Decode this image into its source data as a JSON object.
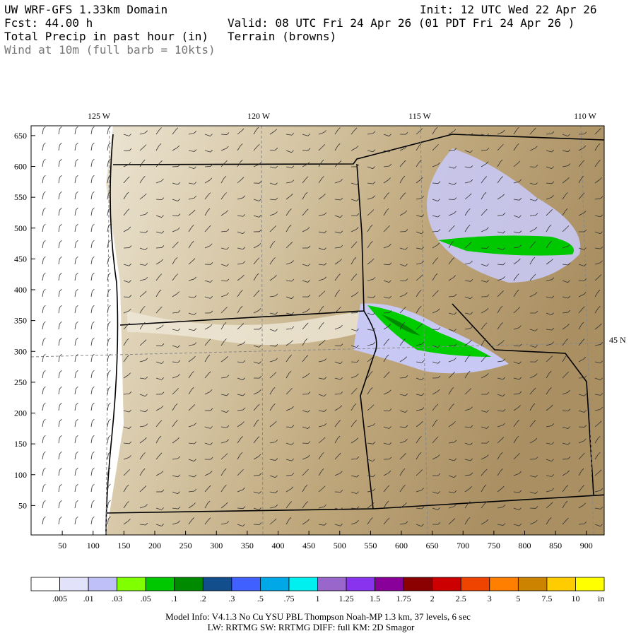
{
  "header": {
    "title": "UW WRF-GFS 1.33km Domain",
    "init": "Init: 12 UTC Wed 22 Apr 26",
    "fcst": "Fcst:   44.00 h",
    "valid": "Valid: 08 UTC Fri 24 Apr 26   (01 PDT Fri 24 Apr 26  )",
    "field": "Total Precip in past hour (in)",
    "terrain": "Terrain (browns)",
    "wind": "Wind at 10m (full barb = 10kts)"
  },
  "map": {
    "lon_labels": [
      "125 W",
      "120 W",
      "115 W",
      "110 W"
    ],
    "lat_label": "45 N",
    "y_ticks": [
      650,
      600,
      550,
      500,
      450,
      400,
      350,
      300,
      250,
      200,
      150,
      100,
      50
    ],
    "x_ticks": [
      50,
      100,
      150,
      200,
      250,
      300,
      350,
      400,
      450,
      500,
      550,
      600,
      650,
      700,
      750,
      800,
      850,
      900
    ]
  },
  "colorbar": {
    "labels": [
      ".005",
      ".01",
      ".03",
      ".05",
      ".1",
      ".2",
      ".3",
      ".5",
      ".75",
      "1",
      "1.25",
      "1.5",
      "1.75",
      "2",
      "2.5",
      "3",
      "5",
      "7.5",
      "10"
    ],
    "unit": "in",
    "colors": [
      "#ffffff",
      "#e2e2fb",
      "#c0c0f8",
      "#80ff00",
      "#00c800",
      "#008a00",
      "#124e8c",
      "#4060ff",
      "#00a8e8",
      "#00f0f0",
      "#9966cc",
      "#8a33ee",
      "#880099",
      "#8b0000",
      "#cc0000",
      "#ee4400",
      "#ff7f00",
      "#cc8400",
      "#ffcc00",
      "#ffff00"
    ]
  },
  "footer": {
    "line1": "Model Info: V4.1.3    No Cu    YSU PBL   Thompson     Noah-MP   1.3 km,  37 levels,    6 sec",
    "line2": "LW: RRTMG SW: RRTMG    DIFF: full    KM: 2D Smagor"
  }
}
